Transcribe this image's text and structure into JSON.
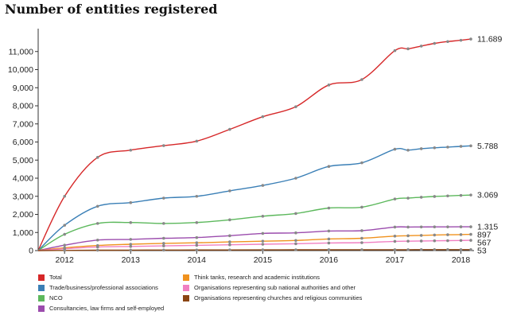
{
  "title": "Number of entities registered",
  "chart_data": {
    "type": "line",
    "title": "Number of entities registered",
    "x_ticks": [
      "2012",
      "2013",
      "2014",
      "2015",
      "2016",
      "2017",
      "2018"
    ],
    "y_ticks": [
      "0",
      "1,000",
      "2,000",
      "3,000",
      "4,000",
      "5,000",
      "6,000",
      "7,000",
      "8,000",
      "9,000",
      "10,000",
      "11,000"
    ],
    "xlim": [
      2011.6,
      2018.15
    ],
    "ylim": [
      0,
      12000
    ],
    "x": [
      2011.6,
      2012,
      2012.5,
      2013,
      2013.5,
      2014,
      2014.5,
      2015,
      2015.5,
      2016,
      2016.5,
      2017,
      2017.2,
      2017.4,
      2017.6,
      2017.8,
      2018,
      2018.15
    ],
    "series": [
      {
        "name": "Total",
        "color": "#d62728",
        "end_label": "11.689",
        "values": [
          0,
          3000,
          5150,
          5550,
          5800,
          6050,
          6700,
          7400,
          7950,
          9150,
          9450,
          11050,
          11150,
          11300,
          11450,
          11550,
          11620,
          11689
        ]
      },
      {
        "name": "Trade/business/professional associations",
        "color": "#3a7fb6",
        "end_label": "5.788",
        "values": [
          0,
          1400,
          2450,
          2650,
          2900,
          3000,
          3300,
          3600,
          4000,
          4650,
          4850,
          5600,
          5550,
          5630,
          5680,
          5720,
          5760,
          5788
        ]
      },
      {
        "name": "NCO",
        "color": "#5cb85c",
        "end_label": "3.069",
        "values": [
          0,
          900,
          1500,
          1550,
          1500,
          1550,
          1700,
          1900,
          2050,
          2350,
          2400,
          2850,
          2900,
          2950,
          2990,
          3020,
          3050,
          3069
        ]
      },
      {
        "name": "Consultancies, law firms and self-employed",
        "color": "#9b4cad",
        "end_label": "1.315",
        "values": [
          0,
          300,
          580,
          620,
          680,
          720,
          820,
          950,
          980,
          1080,
          1100,
          1300,
          1300,
          1305,
          1310,
          1312,
          1314,
          1315
        ]
      },
      {
        "name": "Think tanks, research and academic institutions",
        "color": "#f0921e",
        "end_label": "897",
        "values": [
          0,
          150,
          280,
          350,
          400,
          430,
          480,
          520,
          560,
          640,
          680,
          800,
          820,
          840,
          860,
          875,
          885,
          897
        ]
      },
      {
        "name": "Organisations representing sub national authorities and other",
        "color": "#f07fc1",
        "end_label": "567",
        "values": [
          0,
          100,
          200,
          230,
          260,
          290,
          320,
          350,
          380,
          420,
          440,
          510,
          520,
          530,
          540,
          550,
          560,
          567
        ]
      },
      {
        "name": "Organisations representing churches and religious communities",
        "color": "#8b4513",
        "end_label": "53",
        "values": [
          0,
          10,
          20,
          25,
          30,
          33,
          37,
          40,
          43,
          46,
          48,
          50,
          50,
          51,
          51,
          52,
          52,
          53
        ]
      }
    ]
  }
}
